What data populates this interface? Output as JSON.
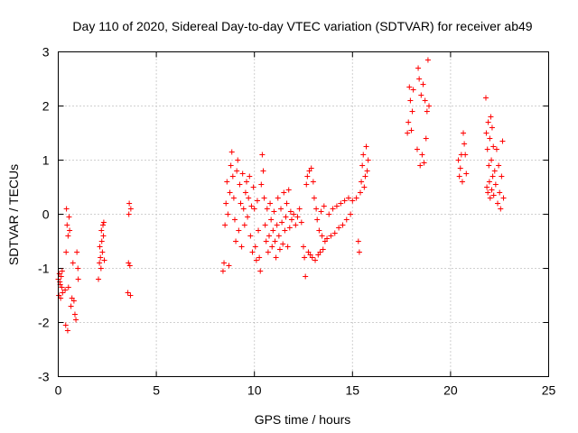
{
  "chart_data": {
    "type": "scatter",
    "title": "Day 110 of 2020, Sidereal Day-to-day VTEC variation (SDTVAR) for receiver ab49",
    "xlabel": "GPS time / hours",
    "ylabel": "SDTVAR / TECUs",
    "xlim": [
      0,
      25
    ],
    "ylim": [
      -3,
      3
    ],
    "xticks": [
      0,
      5,
      10,
      15,
      20,
      25
    ],
    "yticks": [
      -3,
      -2,
      -1,
      0,
      1,
      2,
      3
    ],
    "grid": true,
    "marker": "plus",
    "color": "#ff0000",
    "series": [
      {
        "name": "SDTVAR",
        "points": [
          [
            0.0,
            -1.2
          ],
          [
            0.03,
            -1.5
          ],
          [
            0.06,
            -1.1
          ],
          [
            0.08,
            -1.25
          ],
          [
            0.1,
            -1.3
          ],
          [
            0.12,
            -1.55
          ],
          [
            0.15,
            -1.15
          ],
          [
            0.18,
            -1.35
          ],
          [
            0.2,
            -1.05
          ],
          [
            0.22,
            -1.45
          ],
          [
            0.35,
            -1.4
          ],
          [
            0.38,
            -2.05
          ],
          [
            0.4,
            -0.7
          ],
          [
            0.42,
            0.1
          ],
          [
            0.45,
            -0.2
          ],
          [
            0.48,
            -2.15
          ],
          [
            0.5,
            -0.4
          ],
          [
            0.52,
            -1.35
          ],
          [
            0.55,
            -0.05
          ],
          [
            0.58,
            -0.3
          ],
          [
            0.65,
            -1.7
          ],
          [
            0.7,
            -1.55
          ],
          [
            0.75,
            -0.9
          ],
          [
            0.8,
            -1.6
          ],
          [
            0.85,
            -1.85
          ],
          [
            0.9,
            -1.95
          ],
          [
            0.95,
            -0.7
          ],
          [
            1.0,
            -1.0
          ],
          [
            1.02,
            -1.2
          ],
          [
            2.05,
            -1.2
          ],
          [
            2.1,
            -0.9
          ],
          [
            2.12,
            -0.6
          ],
          [
            2.15,
            -0.8
          ],
          [
            2.18,
            -1.0
          ],
          [
            2.2,
            -0.3
          ],
          [
            2.22,
            -0.5
          ],
          [
            2.25,
            -0.7
          ],
          [
            2.28,
            -0.2
          ],
          [
            2.3,
            -0.4
          ],
          [
            2.32,
            -0.15
          ],
          [
            2.35,
            -0.85
          ],
          [
            3.55,
            -1.45
          ],
          [
            3.58,
            -0.9
          ],
          [
            3.6,
            0.0
          ],
          [
            3.62,
            0.2
          ],
          [
            3.65,
            -0.95
          ],
          [
            3.68,
            -1.5
          ],
          [
            3.7,
            0.1
          ],
          [
            8.4,
            -1.05
          ],
          [
            8.45,
            -0.9
          ],
          [
            8.5,
            -0.2
          ],
          [
            8.55,
            0.2
          ],
          [
            8.6,
            0.6
          ],
          [
            8.65,
            0.0
          ],
          [
            8.7,
            -0.95
          ],
          [
            8.75,
            0.4
          ],
          [
            8.8,
            0.9
          ],
          [
            8.85,
            1.15
          ],
          [
            8.9,
            0.7
          ],
          [
            8.95,
            0.3
          ],
          [
            9.0,
            -0.1
          ],
          [
            9.05,
            -0.5
          ],
          [
            9.1,
            0.8
          ],
          [
            9.15,
            1.0
          ],
          [
            9.2,
            -0.3
          ],
          [
            9.25,
            0.55
          ],
          [
            9.3,
            0.2
          ],
          [
            9.35,
            -0.6
          ],
          [
            9.4,
            0.75
          ],
          [
            9.45,
            0.1
          ],
          [
            9.5,
            -0.2
          ],
          [
            9.55,
            0.4
          ],
          [
            9.6,
            0.6
          ],
          [
            9.65,
            -0.05
          ],
          [
            9.7,
            0.3
          ],
          [
            9.75,
            0.7
          ],
          [
            9.8,
            -0.4
          ],
          [
            9.85,
            0.15
          ],
          [
            9.9,
            -0.7
          ],
          [
            9.95,
            0.5
          ],
          [
            10.0,
            0.1
          ],
          [
            10.05,
            -0.6
          ],
          [
            10.1,
            -0.85
          ],
          [
            10.15,
            0.25
          ],
          [
            10.2,
            -0.3
          ],
          [
            10.25,
            -0.8
          ],
          [
            10.3,
            -1.05
          ],
          [
            10.35,
            0.55
          ],
          [
            10.4,
            1.1
          ],
          [
            10.45,
            0.8
          ],
          [
            10.5,
            0.3
          ],
          [
            10.55,
            -0.2
          ],
          [
            10.6,
            -0.5
          ],
          [
            10.65,
            0.1
          ],
          [
            10.7,
            -0.7
          ],
          [
            10.75,
            -0.4
          ],
          [
            10.8,
            0.2
          ],
          [
            10.85,
            -0.1
          ],
          [
            10.9,
            -0.6
          ],
          [
            10.95,
            -0.3
          ],
          [
            11.0,
            0.05
          ],
          [
            11.05,
            -0.5
          ],
          [
            11.1,
            -0.8
          ],
          [
            11.15,
            -0.2
          ],
          [
            11.2,
            0.3
          ],
          [
            11.25,
            -0.4
          ],
          [
            11.3,
            -0.65
          ],
          [
            11.35,
            0.1
          ],
          [
            11.4,
            -0.15
          ],
          [
            11.45,
            -0.55
          ],
          [
            11.5,
            0.4
          ],
          [
            11.55,
            -0.3
          ],
          [
            11.6,
            -0.05
          ],
          [
            11.65,
            0.2
          ],
          [
            11.7,
            -0.6
          ],
          [
            11.75,
            0.45
          ],
          [
            11.8,
            -0.25
          ],
          [
            11.85,
            0.05
          ],
          [
            11.9,
            -0.1
          ],
          [
            12.0,
            0.0
          ],
          [
            12.1,
            -0.2
          ],
          [
            12.2,
            -0.05
          ],
          [
            12.3,
            0.1
          ],
          [
            12.4,
            -0.15
          ],
          [
            12.5,
            -0.6
          ],
          [
            12.55,
            -0.8
          ],
          [
            12.6,
            -1.15
          ],
          [
            12.65,
            0.55
          ],
          [
            12.7,
            0.7
          ],
          [
            12.75,
            -0.7
          ],
          [
            12.8,
            0.8
          ],
          [
            12.85,
            -0.75
          ],
          [
            12.9,
            0.85
          ],
          [
            12.95,
            -0.8
          ],
          [
            13.0,
            0.6
          ],
          [
            13.05,
            0.3
          ],
          [
            13.1,
            -0.85
          ],
          [
            13.15,
            0.1
          ],
          [
            13.2,
            -0.1
          ],
          [
            13.25,
            -0.75
          ],
          [
            13.3,
            -0.3
          ],
          [
            13.35,
            -0.7
          ],
          [
            13.4,
            0.05
          ],
          [
            13.45,
            -0.4
          ],
          [
            13.5,
            -0.65
          ],
          [
            13.55,
            0.15
          ],
          [
            13.6,
            -0.5
          ],
          [
            13.7,
            -0.45
          ],
          [
            13.8,
            0.0
          ],
          [
            13.9,
            -0.4
          ],
          [
            14.0,
            0.1
          ],
          [
            14.1,
            -0.35
          ],
          [
            14.2,
            0.15
          ],
          [
            14.3,
            -0.25
          ],
          [
            14.4,
            0.2
          ],
          [
            14.5,
            -0.2
          ],
          [
            14.6,
            0.25
          ],
          [
            14.7,
            -0.1
          ],
          [
            14.8,
            0.3
          ],
          [
            14.9,
            0.0
          ],
          [
            15.0,
            0.25
          ],
          [
            15.2,
            0.3
          ],
          [
            15.3,
            -0.5
          ],
          [
            15.35,
            -0.7
          ],
          [
            15.4,
            0.4
          ],
          [
            15.45,
            0.6
          ],
          [
            15.5,
            0.9
          ],
          [
            15.55,
            1.1
          ],
          [
            15.6,
            0.5
          ],
          [
            15.65,
            0.7
          ],
          [
            15.7,
            1.25
          ],
          [
            15.75,
            0.8
          ],
          [
            15.8,
            1.0
          ],
          [
            17.8,
            1.5
          ],
          [
            17.85,
            1.7
          ],
          [
            17.9,
            2.35
          ],
          [
            17.95,
            2.1
          ],
          [
            18.0,
            1.55
          ],
          [
            18.05,
            1.9
          ],
          [
            18.1,
            2.3
          ],
          [
            18.3,
            1.2
          ],
          [
            18.35,
            2.7
          ],
          [
            18.4,
            2.5
          ],
          [
            18.45,
            0.9
          ],
          [
            18.5,
            2.2
          ],
          [
            18.55,
            1.1
          ],
          [
            18.6,
            2.4
          ],
          [
            18.65,
            0.95
          ],
          [
            18.7,
            2.1
          ],
          [
            18.75,
            1.4
          ],
          [
            18.8,
            1.9
          ],
          [
            18.85,
            2.85
          ],
          [
            18.9,
            2.0
          ],
          [
            20.4,
            1.0
          ],
          [
            20.45,
            0.7
          ],
          [
            20.5,
            0.85
          ],
          [
            20.55,
            1.1
          ],
          [
            20.6,
            0.6
          ],
          [
            20.65,
            1.5
          ],
          [
            20.7,
            1.3
          ],
          [
            20.75,
            1.1
          ],
          [
            20.8,
            0.75
          ],
          [
            21.8,
            2.15
          ],
          [
            21.82,
            1.5
          ],
          [
            21.85,
            0.5
          ],
          [
            21.88,
            1.2
          ],
          [
            21.9,
            0.4
          ],
          [
            21.92,
            1.7
          ],
          [
            21.95,
            0.9
          ],
          [
            21.98,
            0.6
          ],
          [
            22.0,
            1.4
          ],
          [
            22.02,
            0.3
          ],
          [
            22.05,
            1.8
          ],
          [
            22.08,
            1.0
          ],
          [
            22.1,
            0.45
          ],
          [
            22.12,
            1.6
          ],
          [
            22.15,
            0.7
          ],
          [
            22.18,
            1.25
          ],
          [
            22.2,
            0.35
          ],
          [
            22.25,
            0.8
          ],
          [
            22.3,
            0.55
          ],
          [
            22.35,
            1.2
          ],
          [
            22.4,
            0.2
          ],
          [
            22.45,
            0.9
          ],
          [
            22.5,
            0.4
          ],
          [
            22.55,
            0.1
          ],
          [
            22.6,
            0.7
          ],
          [
            22.65,
            1.35
          ],
          [
            22.7,
            0.3
          ]
        ]
      }
    ]
  }
}
